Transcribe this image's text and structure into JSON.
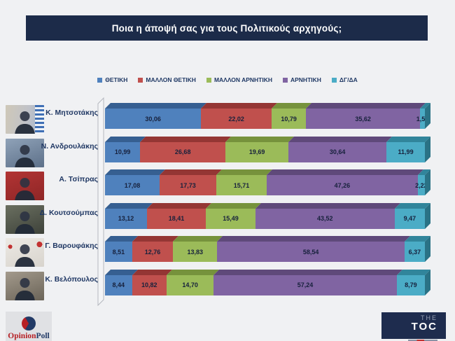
{
  "title": "Ποια η άποψή σας για τους Πολιτικούς αρχηγούς;",
  "colors": {
    "background": "#f0f1f3",
    "title_bar": "#1c2b49",
    "label_text": "#203864"
  },
  "chart_data": {
    "type": "bar",
    "stacked": true,
    "orientation": "horizontal",
    "value_suffix": "%",
    "decimal_separator": ",",
    "xlim": [
      0,
      100
    ],
    "grid": false,
    "legend_position": "top",
    "categories": [
      "Κ. Μητσοτάκης",
      "Ν. Ανδρουλάκης",
      "Α. Τσίπρας",
      "Δ. Κουτσούμπας",
      "Γ. Βαρουφάκης",
      "Κ. Βελόπουλος"
    ],
    "photos": [
      "mitsotakis",
      "androulakis",
      "tsipras",
      "koutsoumpas",
      "varoufakis",
      "velopoulos"
    ],
    "series": [
      {
        "name": "ΘΕΤΙΚΗ",
        "color": "#4f81bd",
        "dark": "#365f91",
        "side": "#2d4f79",
        "values": [
          30.06,
          10.99,
          17.08,
          13.12,
          8.51,
          8.44
        ]
      },
      {
        "name": "ΜΑΛΛΟΝ ΘΕΤΙΚΗ",
        "color": "#c0504d",
        "dark": "#943634",
        "side": "#7a2d2b",
        "values": [
          22.02,
          26.68,
          17.73,
          18.41,
          12.76,
          10.82
        ]
      },
      {
        "name": "ΜΑΛΛΟΝ ΑΡΝΗΤΙΚΗ",
        "color": "#9bbb59",
        "dark": "#76923c",
        "side": "#617932",
        "values": [
          10.79,
          19.69,
          15.71,
          15.49,
          13.83,
          14.7
        ]
      },
      {
        "name": "ΑΡΝΗΤΙΚΗ",
        "color": "#8064a2",
        "dark": "#5f497a",
        "side": "#4e3c64",
        "values": [
          35.62,
          30.64,
          47.26,
          43.52,
          58.54,
          57.24
        ]
      },
      {
        "name": "ΔΓ/ΔΑ",
        "color": "#4bacc6",
        "dark": "#31859b",
        "side": "#2a7285",
        "values": [
          1.51,
          11.99,
          2.22,
          9.47,
          6.37,
          8.79
        ]
      }
    ]
  },
  "footer": {
    "opinion_poll": {
      "part1": "Opinion",
      "part2": "Poll"
    },
    "the_toc": {
      "line1": "THE",
      "line2": "TOC"
    }
  }
}
